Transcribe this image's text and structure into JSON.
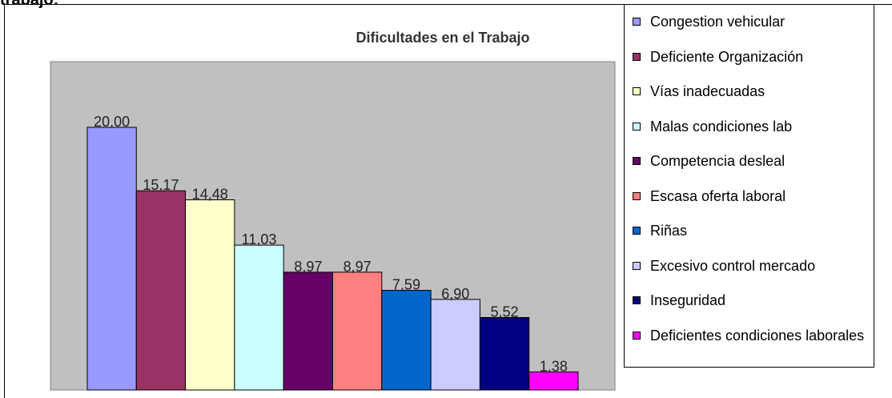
{
  "heading": "trabajo:",
  "chart_data": {
    "type": "bar",
    "title": "Dificultades en el Trabajo",
    "categories": [
      "Congestion vehicular",
      "Deficiente Organización",
      "Vías inadecuadas",
      "Malas condiciones lab",
      "Competencia desleal",
      "Escasa oferta laboral",
      "Riñas",
      "Excesivo control mercado",
      "Inseguridad",
      "Deficientes condiciones laborales"
    ],
    "values": [
      20.0,
      15.17,
      14.48,
      11.03,
      8.97,
      8.97,
      7.59,
      6.9,
      5.52,
      1.38
    ],
    "value_labels": [
      "20,00",
      "15,17",
      "14,48",
      "11,03",
      "8,97",
      "8,97",
      "7,59",
      "6,90",
      "5,52",
      "1,38"
    ],
    "colors": [
      "#9999ff",
      "#993366",
      "#ffffcc",
      "#ccffff",
      "#660066",
      "#ff8080",
      "#0066cc",
      "#ccccff",
      "#000080",
      "#ff00ff"
    ],
    "ylim": [
      0,
      25
    ],
    "legend": "right"
  }
}
